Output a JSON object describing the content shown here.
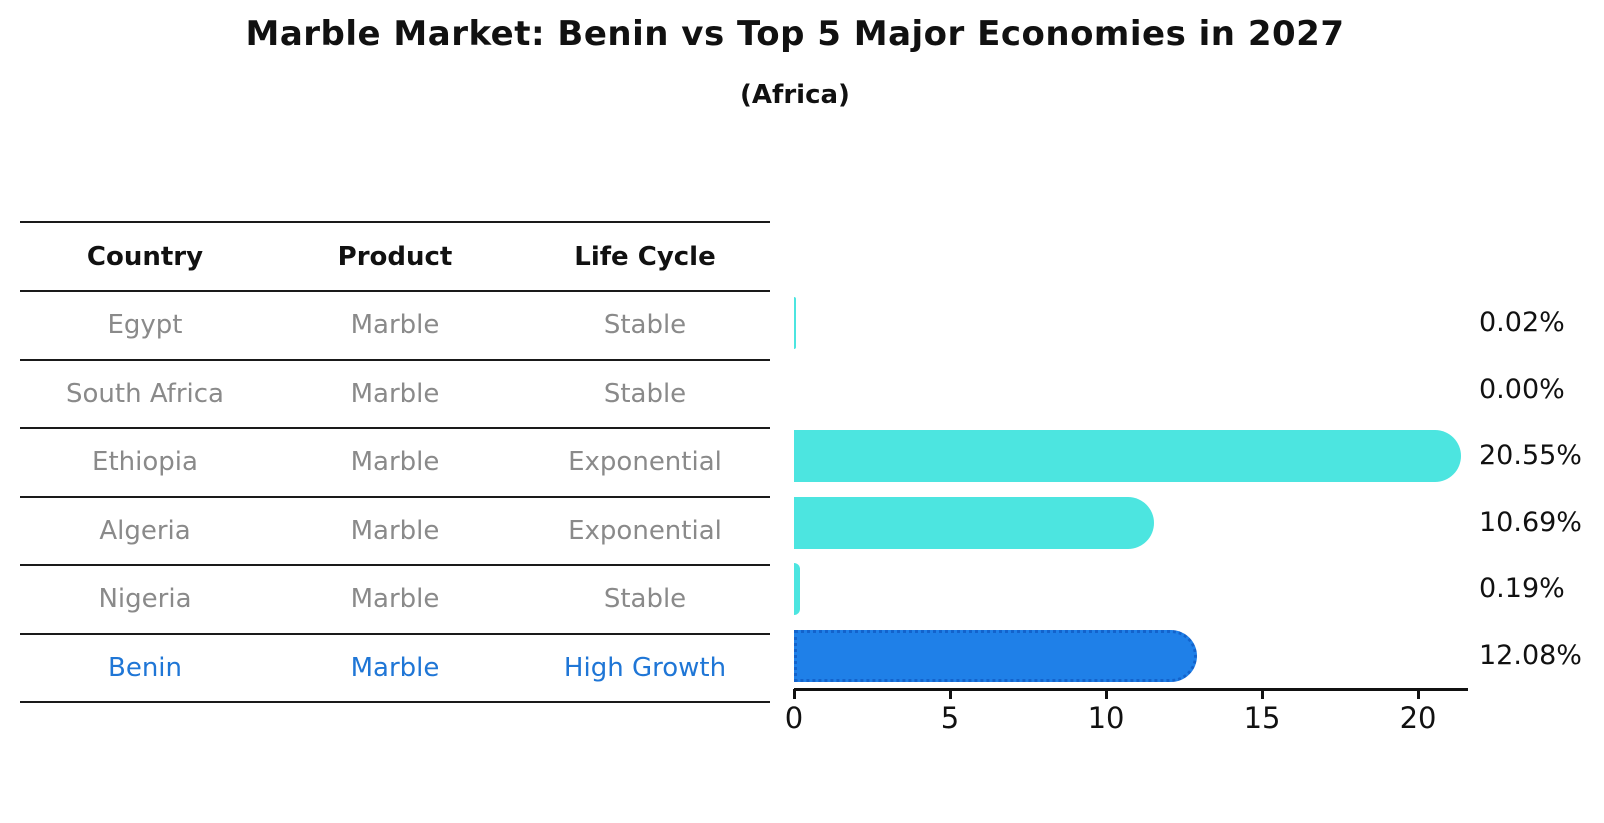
{
  "title": "Marble Market: Benin vs Top 5 Major Economies in 2027",
  "subtitle": "(Africa)",
  "table": {
    "headers": [
      "Country",
      "Product",
      "Life Cycle"
    ],
    "rows": [
      {
        "country": "Egypt",
        "product": "Marble",
        "life_cycle": "Stable",
        "highlighted": false
      },
      {
        "country": "South Africa",
        "product": "Marble",
        "life_cycle": "Stable",
        "highlighted": false
      },
      {
        "country": "Ethiopia",
        "product": "Marble",
        "life_cycle": "Exponential",
        "highlighted": false
      },
      {
        "country": "Algeria",
        "product": "Marble",
        "life_cycle": "Exponential",
        "highlighted": false
      },
      {
        "country": "Nigeria",
        "product": "Marble",
        "life_cycle": "Stable",
        "highlighted": false
      },
      {
        "country": "Benin",
        "product": "Marble",
        "life_cycle": "High Growth",
        "highlighted": true
      }
    ]
  },
  "chart_data": {
    "type": "bar",
    "orientation": "horizontal",
    "title": "Marble Market: Benin vs Top 5 Major Economies in 2027",
    "subtitle": "(Africa)",
    "categories": [
      "Egypt",
      "South Africa",
      "Ethiopia",
      "Algeria",
      "Nigeria",
      "Benin"
    ],
    "values": [
      0.02,
      0.0,
      20.55,
      10.69,
      0.19,
      12.08
    ],
    "value_labels": [
      "0.02%",
      "0.00%",
      "20.55%",
      "10.69%",
      "0.19%",
      "12.08%"
    ],
    "xlabel": "",
    "ylabel": "",
    "xlim": [
      0,
      21.6
    ],
    "xticks": [
      0,
      5,
      10,
      15,
      20
    ],
    "grid": false,
    "legend": false,
    "bar_color": "#4ce5e0",
    "highlight_index": 5,
    "highlight_bar_color": "#1f80e8",
    "highlight_bar_border_color": "#1363cc",
    "highlight_text_color": "#1f76d6",
    "row_text_color": "#8a8a8a",
    "axis_color": "#111111"
  }
}
